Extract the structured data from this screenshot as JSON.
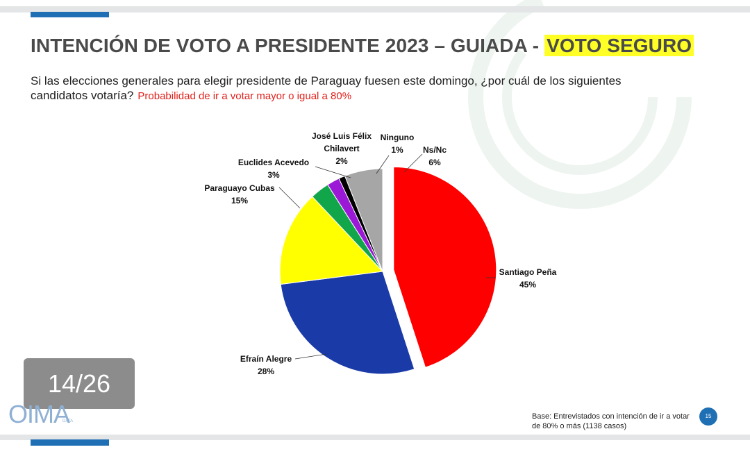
{
  "title_main": "INTENCIÓN DE VOTO A PRESIDENTE 2023 – GUIADA - ",
  "title_highlight": "VOTO SEGURO",
  "question": "Si las elecciones generales para elegir presidente de Paraguay fuesen este domingo, ¿por cuál de los siguientes candidatos votaría?",
  "question_note": "Probabilidad de ir a votar mayor o igual a 80%",
  "page_indicator": "14/26",
  "logo_text": "OIMA",
  "logo_sub": "DATA",
  "base_note": "Base: Entrevistados con intención de ir a votar de 80% o más (1138 casos)",
  "slide_number": "15",
  "chart_data": {
    "type": "pie",
    "unit": "%",
    "slices": [
      {
        "name": "Santiago Peña",
        "value": 45,
        "label": "45%",
        "color": "#ff0000",
        "exploded": true
      },
      {
        "name": "Efraín Alegre",
        "value": 28,
        "label": "28%",
        "color": "#1a3aa8"
      },
      {
        "name": "Paraguayo Cubas",
        "value": 15,
        "label": "15%",
        "color": "#ffff00"
      },
      {
        "name": "Euclides Acevedo",
        "value": 3,
        "label": "3%",
        "color": "#12a64a"
      },
      {
        "name": "José Luis Félix Chilavert",
        "value": 2,
        "label": "2%",
        "color": "#9b19d6"
      },
      {
        "name": "Ninguno",
        "value": 1,
        "label": "1%",
        "color": "#000000"
      },
      {
        "name": "Ns/Nc",
        "value": 6,
        "label": "6%",
        "color": "#a6a6a6"
      }
    ]
  }
}
